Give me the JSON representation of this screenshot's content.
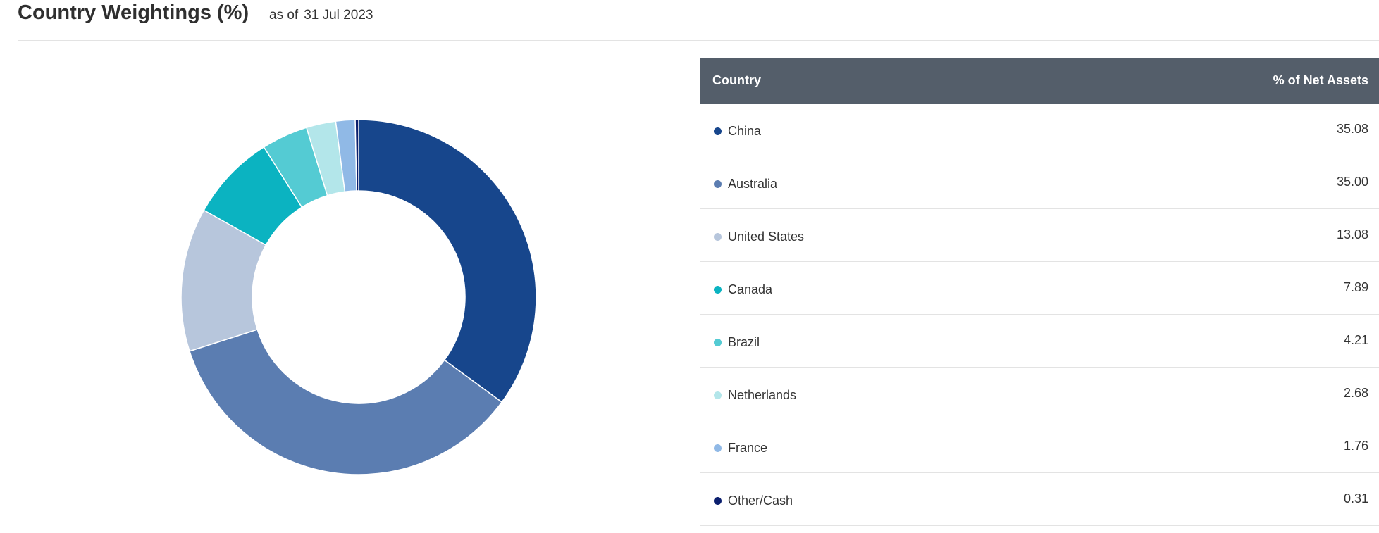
{
  "header": {
    "title": "Country Weightings (%)",
    "as_of_label": "as of",
    "as_of_date": "31 Jul 2023"
  },
  "table": {
    "col_country": "Country",
    "col_pct": "% of Net Assets"
  },
  "chart_data": {
    "type": "pie",
    "donut": true,
    "categories": [
      "China",
      "Australia",
      "United States",
      "Canada",
      "Brazil",
      "Netherlands",
      "France",
      "Other/Cash"
    ],
    "values": [
      35.08,
      35.0,
      13.08,
      7.89,
      4.21,
      2.68,
      1.76,
      0.31
    ],
    "labels": [
      "35.08",
      "35.00",
      "13.08",
      "7.89",
      "4.21",
      "2.68",
      "1.76",
      "0.31"
    ],
    "colors": [
      "#17468c",
      "#5b7db1",
      "#b7c6dc",
      "#0bb3c1",
      "#54cbd3",
      "#b3e6ea",
      "#90b9e6",
      "#0b1f6e"
    ],
    "legend": "right"
  }
}
